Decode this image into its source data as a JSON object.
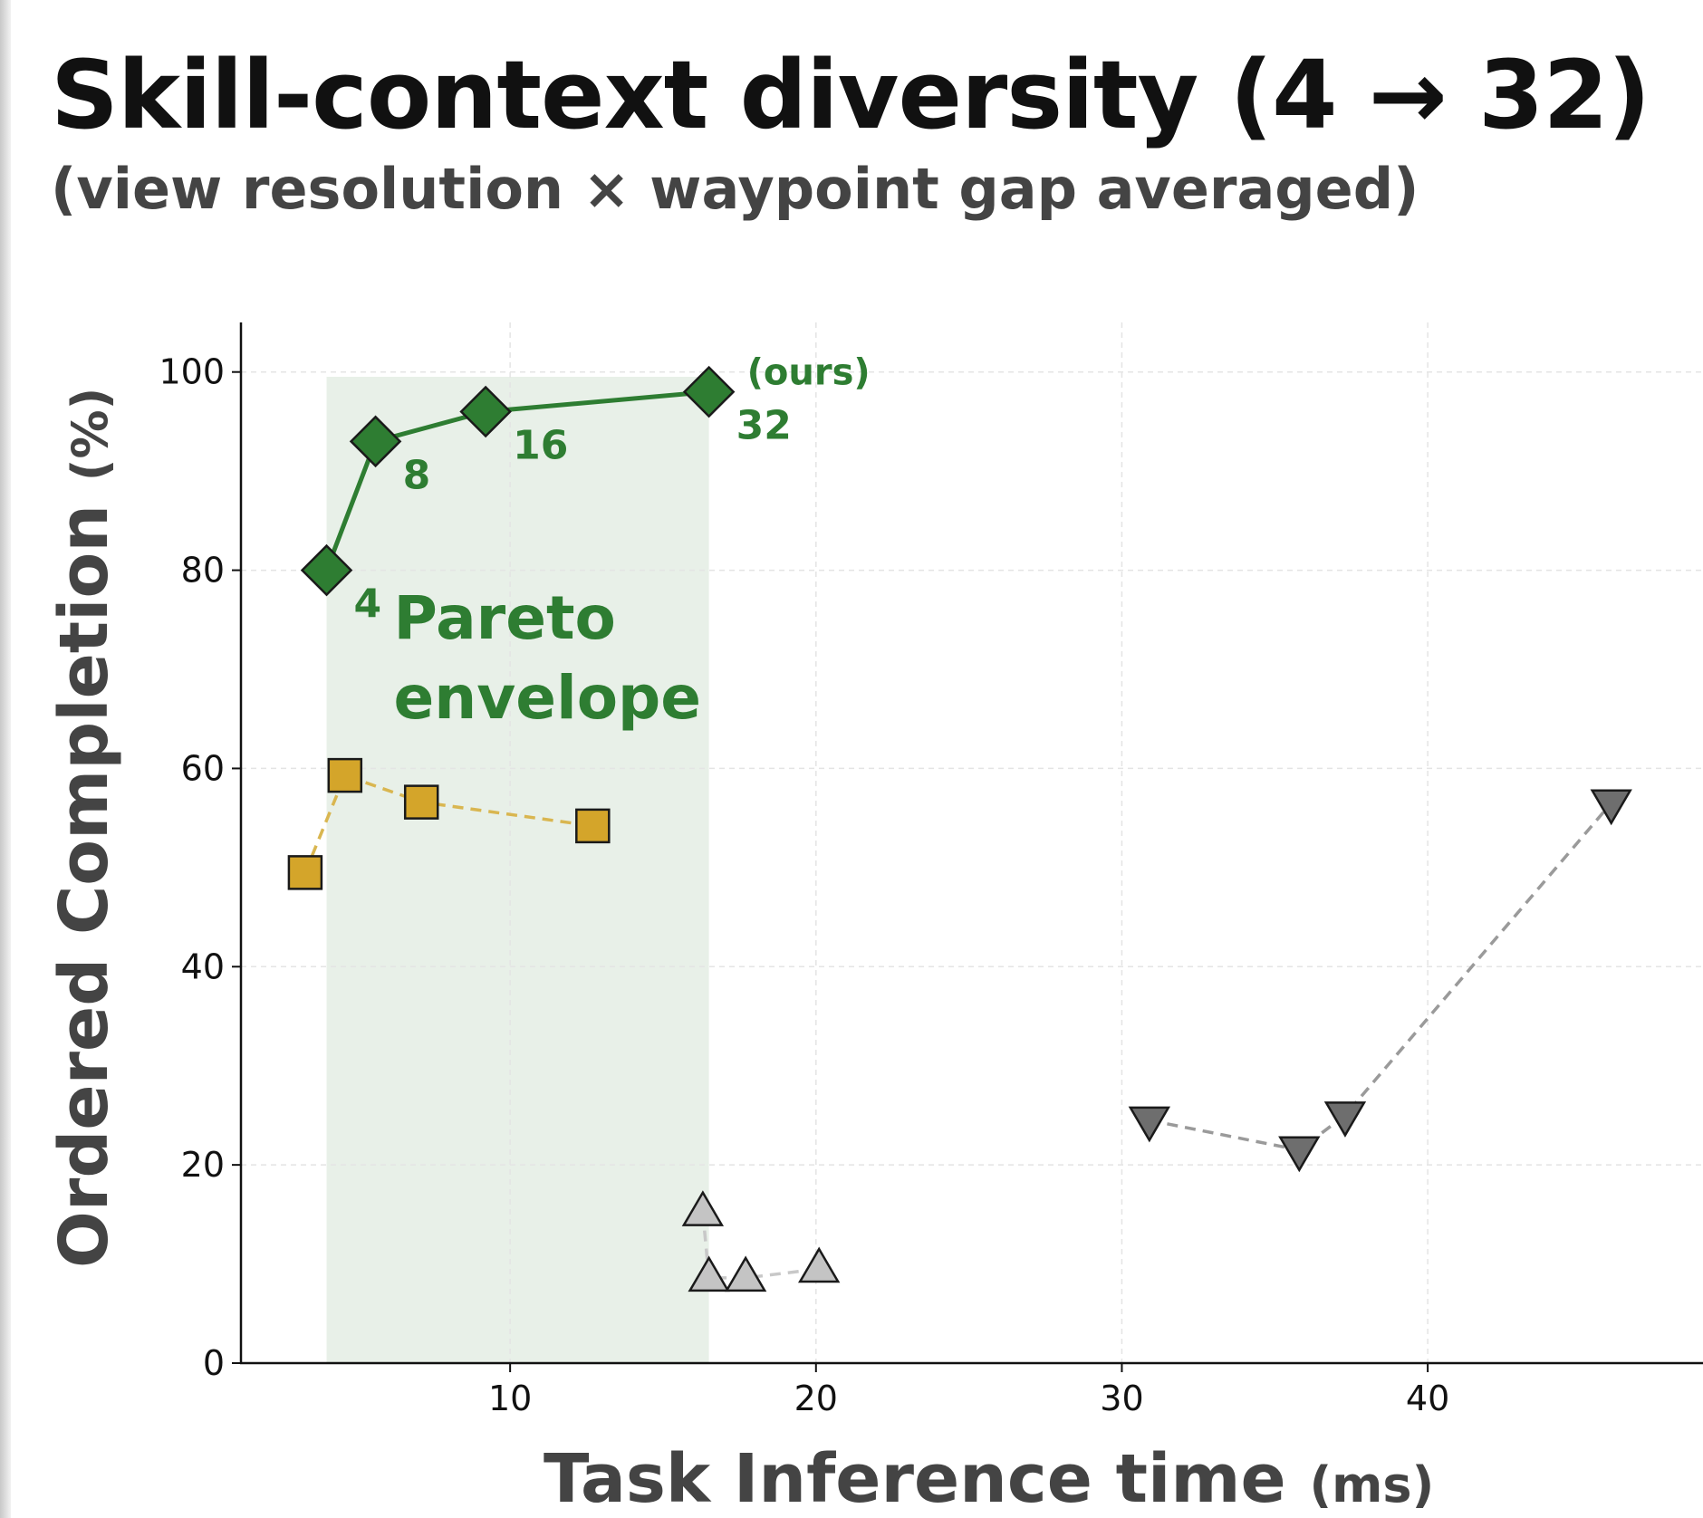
{
  "title": "Skill-context diversity (4 → 32)",
  "subtitle": "(view resolution × waypoint gap averaged)",
  "chart_data": {
    "type": "scatter",
    "xlabel": "Task Inference time",
    "xlabel_unit": "(ms)",
    "ylabel": "Ordered Completion",
    "ylabel_unit": "(%)",
    "xlim": [
      1.2,
      49
    ],
    "ylim": [
      0,
      105
    ],
    "xticks": [
      10,
      20,
      30,
      40
    ],
    "yticks": [
      0,
      20,
      40,
      60,
      80,
      100
    ],
    "grid": true,
    "shaded_region": {
      "label_line1": "Pareto",
      "label_line2": "envelope",
      "x_start": 4.0,
      "x_end": 16.5,
      "color": "#e8f0e8"
    },
    "series": [
      {
        "marker": "diamond",
        "color": "#2e7d32",
        "line": "solid",
        "line_color": "#2e7d32",
        "points": [
          {
            "x": 4.0,
            "y": 80,
            "label": "4"
          },
          {
            "x": 5.6,
            "y": 93,
            "label": "8"
          },
          {
            "x": 9.2,
            "y": 96,
            "label": "16"
          },
          {
            "x": 16.5,
            "y": 98,
            "label": "32"
          }
        ],
        "annotation": "(ours)"
      },
      {
        "marker": "square",
        "color": "#d4a52a",
        "line": "dashed",
        "line_color": "#d9b650",
        "points": [
          {
            "x": 3.3,
            "y": 49.5
          },
          {
            "x": 4.6,
            "y": 59.3
          },
          {
            "x": 7.1,
            "y": 56.6
          },
          {
            "x": 12.7,
            "y": 54.2
          }
        ]
      },
      {
        "marker": "triangle-up",
        "color": "#c4c4c4",
        "line": "dashed",
        "line_color": "#c8c8c8",
        "points": [
          {
            "x": 16.3,
            "y": 15.2
          },
          {
            "x": 16.5,
            "y": 8.6
          },
          {
            "x": 17.7,
            "y": 8.6
          },
          {
            "x": 20.1,
            "y": 9.5
          }
        ]
      },
      {
        "marker": "triangle-down",
        "color": "#6e6e6e",
        "line": "dashed",
        "line_color": "#9a9a9a",
        "points": [
          {
            "x": 30.9,
            "y": 24.5
          },
          {
            "x": 35.8,
            "y": 21.5
          },
          {
            "x": 37.3,
            "y": 25.0
          },
          {
            "x": 46.0,
            "y": 56.5
          }
        ]
      }
    ]
  }
}
